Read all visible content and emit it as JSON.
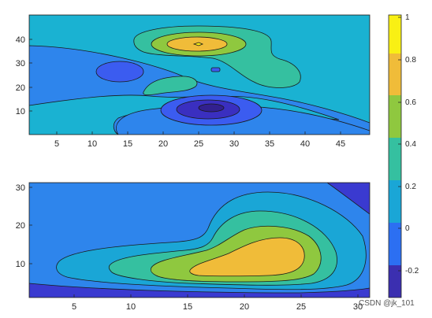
{
  "chart_data": [
    {
      "type": "contourf",
      "panel": "top",
      "x_ticks": [
        "5",
        "10",
        "15",
        "20",
        "25",
        "30",
        "35",
        "40",
        "45"
      ],
      "y_ticks": [
        "10",
        "20",
        "30",
        "40"
      ],
      "xlim": [
        1,
        49
      ],
      "ylim": [
        1,
        49
      ],
      "levels": [
        -0.2,
        0,
        0.2,
        0.4,
        0.6,
        0.8,
        1
      ]
    },
    {
      "type": "contourf",
      "panel": "bottom",
      "x_ticks": [
        "5",
        "10",
        "15",
        "20",
        "25",
        "30"
      ],
      "y_ticks": [
        "10",
        "20",
        "30"
      ],
      "xlim": [
        1,
        31
      ],
      "ylim": [
        1,
        31
      ],
      "levels": [
        -0.2,
        0,
        0.2,
        0.4,
        0.6,
        0.8,
        1
      ]
    }
  ],
  "colorbar": {
    "ticks": [
      "1",
      "0.8",
      "0.6",
      "0.4",
      "0.2",
      "0",
      "-0.2"
    ],
    "colors": [
      "#3b2fb0",
      "#2c6ff2",
      "#1aa6d6",
      "#35c0a0",
      "#8fc83f",
      "#f0bc39",
      "#f9f014"
    ]
  },
  "watermark": "CSDN @jk_101"
}
